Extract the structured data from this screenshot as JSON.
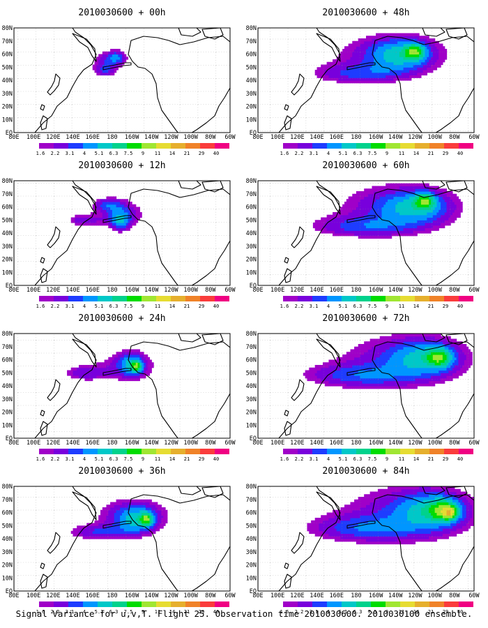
{
  "caption": "Signal Variance for u,v,T. Flight 25. Observation time 2010030600. 2010030100 ensemble.",
  "colorbar": {
    "levels": [
      "1.6",
      "2.2",
      "3.1",
      "4",
      "5.1",
      "6.3",
      "7.5",
      "9",
      "11",
      "14",
      "21",
      "29",
      "40"
    ],
    "colors": [
      "#a000c8",
      "#7800dc",
      "#1e3cff",
      "#0096ff",
      "#00c8c8",
      "#00d28c",
      "#00dc00",
      "#a0e632",
      "#e6dc32",
      "#e6af2d",
      "#f08228",
      "#fa3c3c",
      "#f00082"
    ]
  },
  "axes": {
    "x_ticks": [
      "80E",
      "100E",
      "120E",
      "140E",
      "160E",
      "180",
      "160W",
      "140W",
      "120W",
      "100W",
      "80W",
      "60W"
    ],
    "y_ticks": [
      "80N",
      "70N",
      "60N",
      "50N",
      "40N",
      "30N",
      "20N",
      "10N",
      "EQ"
    ]
  },
  "chart_data": [
    {
      "type": "heatmap",
      "title": "2010030600 + 00h",
      "lead_hours": 0,
      "blobs": [
        [
          175,
          55,
          18,
          8,
          1.6
        ],
        [
          185,
          58,
          10,
          5,
          1.8
        ],
        [
          172,
          47,
          12,
          5,
          1.5
        ]
      ]
    },
    {
      "type": "heatmap",
      "title": "2010030600 + 12h",
      "lead_hours": 12,
      "blobs": [
        [
          190,
          55,
          28,
          12,
          1.6
        ],
        [
          188,
          50,
          10,
          8,
          2.2
        ],
        [
          175,
          62,
          15,
          5,
          1.6
        ],
        [
          150,
          50,
          18,
          5,
          1.6
        ]
      ]
    },
    {
      "type": "heatmap",
      "title": "2010030600 + 24h",
      "lead_hours": 24,
      "blobs": [
        [
          195,
          55,
          35,
          14,
          1.6
        ],
        [
          200,
          57,
          12,
          8,
          2.2
        ],
        [
          205,
          55,
          5,
          4,
          3.1
        ],
        [
          150,
          50,
          22,
          6,
          1.6
        ]
      ]
    },
    {
      "type": "heatmap",
      "title": "2010030600 + 36h",
      "lead_hours": 36,
      "blobs": [
        [
          200,
          58,
          45,
          16,
          1.6
        ],
        [
          205,
          55,
          20,
          10,
          2.2
        ],
        [
          215,
          55,
          6,
          5,
          3.1
        ],
        [
          165,
          45,
          35,
          6,
          1.6
        ]
      ]
    },
    {
      "type": "heatmap",
      "title": "2010030600 + 48h",
      "lead_hours": 48,
      "blobs": [
        [
          215,
          60,
          70,
          18,
          1.6
        ],
        [
          225,
          60,
          30,
          12,
          2.2
        ],
        [
          240,
          62,
          10,
          6,
          3.1
        ],
        [
          180,
          45,
          50,
          8,
          1.6
        ]
      ]
    },
    {
      "type": "heatmap",
      "title": "2010030600 + 60h",
      "lead_hours": 60,
      "blobs": [
        [
          220,
          60,
          75,
          22,
          1.6
        ],
        [
          240,
          60,
          35,
          12,
          2.2
        ],
        [
          250,
          65,
          10,
          6,
          3.1
        ],
        [
          185,
          45,
          55,
          8,
          1.6
        ]
      ]
    },
    {
      "type": "heatmap",
      "title": "2010030600 + 72h",
      "lead_hours": 72,
      "blobs": [
        [
          225,
          60,
          80,
          24,
          1.6
        ],
        [
          250,
          62,
          35,
          13,
          2.2
        ],
        [
          265,
          62,
          12,
          7,
          3.1
        ],
        [
          180,
          48,
          60,
          9,
          1.6
        ]
      ]
    },
    {
      "type": "heatmap",
      "title": "2010030600 + 84h",
      "lead_hours": 84,
      "blobs": [
        [
          230,
          60,
          85,
          26,
          1.6
        ],
        [
          255,
          62,
          35,
          14,
          2.2
        ],
        [
          270,
          62,
          15,
          8,
          3.1
        ],
        [
          275,
          60,
          6,
          4,
          4
        ],
        [
          185,
          48,
          60,
          10,
          1.6
        ]
      ]
    }
  ]
}
